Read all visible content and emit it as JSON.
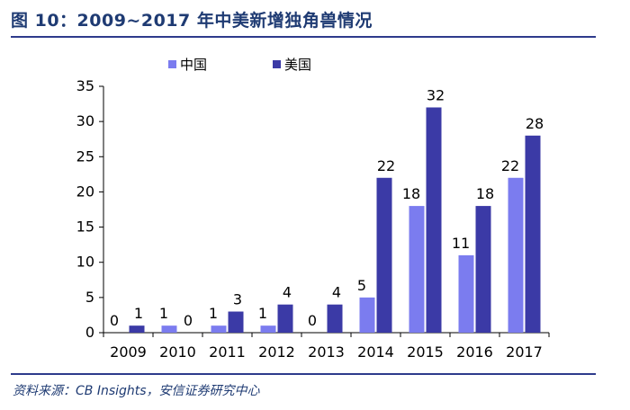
{
  "header": {
    "title": "图 10：2009~2017 年中美新增独角兽情况"
  },
  "footer": {
    "source": "资料来源：CB Insights，安信证券研究中心"
  },
  "colors": {
    "china": "#7b7cef",
    "usa": "#3b3aa6",
    "rule": "#2e3b8c",
    "title": "#1f3b73"
  },
  "chart_data": {
    "type": "bar",
    "title": "",
    "xlabel": "",
    "ylabel": "",
    "ylim": [
      0,
      35
    ],
    "yticks": [
      0,
      5,
      10,
      15,
      20,
      25,
      30,
      35
    ],
    "categories": [
      "2009",
      "2010",
      "2011",
      "2012",
      "2013",
      "2014",
      "2015",
      "2016",
      "2017"
    ],
    "series": [
      {
        "name": "中国",
        "values": [
          0,
          1,
          1,
          1,
          0,
          5,
          18,
          11,
          22
        ]
      },
      {
        "name": "美国",
        "values": [
          1,
          0,
          3,
          4,
          4,
          22,
          32,
          18,
          28
        ]
      }
    ],
    "legend_position": "top"
  }
}
